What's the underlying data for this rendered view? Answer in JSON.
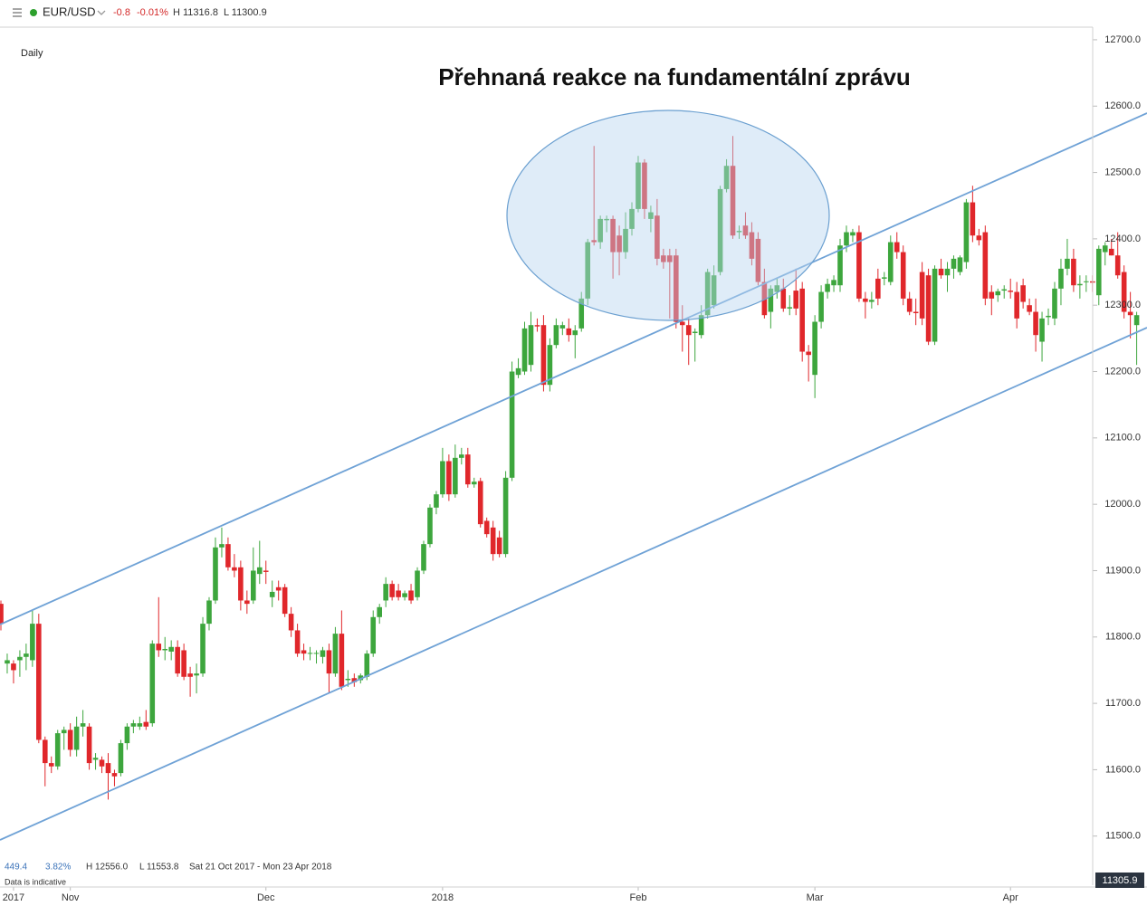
{
  "chart_data": {
    "type": "candlestick",
    "symbol": "EUR/USD",
    "change": "-0.8",
    "change_pct": "-0.01%",
    "header_high": "H 11316.8",
    "header_low": "L 11300.9",
    "interval": "Daily",
    "title": "Přehnaná reakce na fundamentální zprávu",
    "footer_range": "449.4",
    "footer_range_pct": "3.82%",
    "footer_high": "H 12556.0",
    "footer_low": "L 11553.8",
    "footer_period": "Sat 21 Oct 2017 - Mon 23 Apr 2018",
    "disclaimer": "Data is indicative",
    "last_price": "11305.9",
    "up_color": "#3da63d",
    "down_color": "#e0272b",
    "ylim": [
      11426,
      12719
    ],
    "yticks": [
      {
        "value": 11500,
        "label": "11500.0"
      },
      {
        "value": 11600,
        "label": "11600.0"
      },
      {
        "value": 11700,
        "label": "11700.0"
      },
      {
        "value": 11800,
        "label": "11800.0"
      },
      {
        "value": 11900,
        "label": "11900.0"
      },
      {
        "value": 12000,
        "label": "12000.0"
      },
      {
        "value": 12100,
        "label": "12100.0"
      },
      {
        "value": 12200,
        "label": "12200.0"
      },
      {
        "value": 12300,
        "label": "12300.0"
      },
      {
        "value": 12400,
        "label": "12400.0"
      },
      {
        "value": 12500,
        "label": "12500.0"
      },
      {
        "value": 12600,
        "label": "12600.0"
      },
      {
        "value": 12700,
        "label": "12700.0"
      }
    ],
    "xticks": [
      {
        "value": 2,
        "label": "2017"
      },
      {
        "value": 11,
        "label": "Nov"
      },
      {
        "value": 42,
        "label": "Dec"
      },
      {
        "value": 70,
        "label": "2018"
      },
      {
        "value": 101,
        "label": "Feb"
      },
      {
        "value": 129,
        "label": "Mar"
      },
      {
        "value": 160,
        "label": "Apr"
      }
    ],
    "candles": [
      [
        11850,
        11855,
        11810,
        11820
      ],
      [
        11760,
        11775,
        11745,
        11765
      ],
      [
        11760,
        11765,
        11730,
        11750
      ],
      [
        11765,
        11780,
        11740,
        11770
      ],
      [
        11770,
        11790,
        11750,
        11775
      ],
      [
        11765,
        11840,
        11755,
        11820
      ],
      [
        11820,
        11835,
        11640,
        11645
      ],
      [
        11645,
        11650,
        11575,
        11610
      ],
      [
        11610,
        11620,
        11595,
        11605
      ],
      [
        11605,
        11660,
        11600,
        11655
      ],
      [
        11655,
        11665,
        11630,
        11660
      ],
      [
        11660,
        11670,
        11620,
        11630
      ],
      [
        11630,
        11680,
        11620,
        11665
      ],
      [
        11665,
        11690,
        11650,
        11670
      ],
      [
        11665,
        11670,
        11600,
        11610
      ],
      [
        11615,
        11625,
        11600,
        11618
      ],
      [
        11615,
        11620,
        11595,
        11605
      ],
      [
        11610,
        11625,
        11555,
        11595
      ],
      [
        11595,
        11600,
        11575,
        11590
      ],
      [
        11595,
        11645,
        11590,
        11640
      ],
      [
        11640,
        11670,
        11630,
        11665
      ],
      [
        11665,
        11675,
        11655,
        11670
      ],
      [
        11665,
        11680,
        11660,
        11670
      ],
      [
        11672,
        11690,
        11660,
        11665
      ],
      [
        11670,
        11795,
        11665,
        11790
      ],
      [
        11790,
        11860,
        11770,
        11780
      ],
      [
        11780,
        11800,
        11765,
        11782
      ],
      [
        11778,
        11795,
        11765,
        11785
      ],
      [
        11785,
        11795,
        11740,
        11745
      ],
      [
        11780,
        11790,
        11735,
        11740
      ],
      [
        11745,
        11755,
        11710,
        11740
      ],
      [
        11742,
        11760,
        11715,
        11745
      ],
      [
        11745,
        11830,
        11740,
        11820
      ],
      [
        11820,
        11860,
        11810,
        11855
      ],
      [
        11855,
        11950,
        11850,
        11935
      ],
      [
        11935,
        11965,
        11920,
        11940
      ],
      [
        11940,
        11950,
        11900,
        11905
      ],
      [
        11905,
        11925,
        11890,
        11900
      ],
      [
        11905,
        11915,
        11840,
        11855
      ],
      [
        11855,
        11870,
        11835,
        11850
      ],
      [
        11855,
        11935,
        11850,
        11900
      ],
      [
        11895,
        11945,
        11880,
        11905
      ],
      [
        11900,
        11915,
        11880,
        11898
      ],
      [
        11860,
        11885,
        11845,
        11868
      ],
      [
        11875,
        11885,
        11855,
        11870
      ],
      [
        11875,
        11880,
        11830,
        11835
      ],
      [
        11835,
        11845,
        11800,
        11810
      ],
      [
        11810,
        11820,
        11770,
        11775
      ],
      [
        11780,
        11790,
        11765,
        11775
      ],
      [
        11775,
        11785,
        11765,
        11776
      ],
      [
        11775,
        11780,
        11760,
        11776
      ],
      [
        11770,
        11785,
        11760,
        11780
      ],
      [
        11780,
        11790,
        11715,
        11745
      ],
      [
        11745,
        11815,
        11740,
        11805
      ],
      [
        11805,
        11840,
        11720,
        11725
      ],
      [
        11735,
        11750,
        11725,
        11737
      ],
      [
        11738,
        11745,
        11725,
        11732
      ],
      [
        11735,
        11745,
        11730,
        11742
      ],
      [
        11740,
        11780,
        11735,
        11775
      ],
      [
        11775,
        11840,
        11770,
        11830
      ],
      [
        11830,
        11850,
        11820,
        11845
      ],
      [
        11855,
        11890,
        11845,
        11880
      ],
      [
        11880,
        11885,
        11855,
        11860
      ],
      [
        11870,
        11880,
        11855,
        11860
      ],
      [
        11860,
        11870,
        11855,
        11866
      ],
      [
        11870,
        11880,
        11850,
        11855
      ],
      [
        11860,
        11905,
        11855,
        11900
      ],
      [
        11900,
        11945,
        11895,
        11940
      ],
      [
        11940,
        12000,
        11935,
        11995
      ],
      [
        11995,
        12020,
        11985,
        12015
      ],
      [
        12015,
        12085,
        12010,
        12065
      ],
      [
        12065,
        12075,
        12005,
        12015
      ],
      [
        12015,
        12090,
        12010,
        12070
      ],
      [
        12070,
        12085,
        12060,
        12075
      ],
      [
        12075,
        12085,
        12025,
        12030
      ],
      [
        12030,
        12040,
        12025,
        12034
      ],
      [
        12035,
        12040,
        11965,
        11970
      ],
      [
        11975,
        11980,
        11950,
        11955
      ],
      [
        11965,
        11975,
        11915,
        11925
      ],
      [
        11950,
        11960,
        11920,
        11925
      ],
      [
        11925,
        12050,
        11920,
        12040
      ],
      [
        12040,
        12215,
        12035,
        12200
      ],
      [
        12195,
        12220,
        12190,
        12205
      ],
      [
        12200,
        12275,
        12195,
        12265
      ],
      [
        12210,
        12290,
        12200,
        12270
      ],
      [
        12270,
        12280,
        12260,
        12268
      ],
      [
        12270,
        12285,
        12170,
        12180
      ],
      [
        12180,
        12250,
        12170,
        12240
      ],
      [
        12240,
        12280,
        12235,
        12270
      ],
      [
        12265,
        12275,
        12255,
        12270
      ],
      [
        12265,
        12280,
        12245,
        12255
      ],
      [
        12255,
        12270,
        12220,
        12262
      ],
      [
        12265,
        12320,
        12260,
        12310
      ],
      [
        12310,
        12400,
        12300,
        12395
      ],
      [
        12398,
        12540,
        12390,
        12395
      ],
      [
        12395,
        12435,
        12385,
        12430
      ],
      [
        12428,
        12435,
        12410,
        12430
      ],
      [
        12430,
        12435,
        12340,
        12380
      ],
      [
        12405,
        12420,
        12345,
        12380
      ],
      [
        12380,
        12440,
        12370,
        12415
      ],
      [
        12415,
        12455,
        12405,
        12445
      ],
      [
        12445,
        12525,
        12440,
        12515
      ],
      [
        12515,
        12520,
        12430,
        12445
      ],
      [
        12430,
        12450,
        12410,
        12440
      ],
      [
        12435,
        12460,
        12360,
        12370
      ],
      [
        12375,
        12385,
        12355,
        12365
      ],
      [
        12375,
        12385,
        12280,
        12365
      ],
      [
        12375,
        12385,
        12265,
        12275
      ],
      [
        12275,
        12300,
        12230,
        12270
      ],
      [
        12270,
        12280,
        12210,
        12255
      ],
      [
        12258,
        12265,
        12215,
        12260
      ],
      [
        12255,
        12300,
        12250,
        12285
      ],
      [
        12285,
        12355,
        12280,
        12350
      ],
      [
        12300,
        12360,
        12295,
        12345
      ],
      [
        12350,
        12480,
        12345,
        12475
      ],
      [
        12475,
        12520,
        12470,
        12510
      ],
      [
        12510,
        12555,
        12400,
        12405
      ],
      [
        12410,
        12420,
        12400,
        12412
      ],
      [
        12420,
        12440,
        12400,
        12405
      ],
      [
        12410,
        12425,
        12360,
        12370
      ],
      [
        12400,
        12410,
        12330,
        12335
      ],
      [
        12335,
        12355,
        12280,
        12285
      ],
      [
        12290,
        12330,
        12265,
        12325
      ],
      [
        12320,
        12340,
        12310,
        12330
      ],
      [
        12325,
        12340,
        12290,
        12295
      ],
      [
        12295,
        12315,
        12285,
        12297
      ],
      [
        12322,
        12355,
        12285,
        12295
      ],
      [
        12325,
        12335,
        12215,
        12230
      ],
      [
        12230,
        12240,
        12185,
        12225
      ],
      [
        12195,
        12285,
        12160,
        12275
      ],
      [
        12275,
        12330,
        12265,
        12320
      ],
      [
        12320,
        12340,
        12310,
        12332
      ],
      [
        12330,
        12345,
        12320,
        12338
      ],
      [
        12330,
        12400,
        12320,
        12390
      ],
      [
        12390,
        12420,
        12380,
        12410
      ],
      [
        12405,
        12415,
        12395,
        12410
      ],
      [
        12410,
        12420,
        12305,
        12310
      ],
      [
        12310,
        12320,
        12280,
        12305
      ],
      [
        12305,
        12320,
        12295,
        12308
      ],
      [
        12340,
        12355,
        12300,
        12310
      ],
      [
        12340,
        12350,
        12330,
        12342
      ],
      [
        12335,
        12405,
        12330,
        12395
      ],
      [
        12395,
        12410,
        12370,
        12380
      ],
      [
        12380,
        12390,
        12300,
        12310
      ],
      [
        12310,
        12320,
        12285,
        12290
      ],
      [
        12290,
        12310,
        12270,
        12288
      ],
      [
        12350,
        12365,
        12270,
        12280
      ],
      [
        12345,
        12355,
        12240,
        12245
      ],
      [
        12245,
        12360,
        12240,
        12355
      ],
      [
        12355,
        12370,
        12340,
        12345
      ],
      [
        12345,
        12365,
        12320,
        12355
      ],
      [
        12355,
        12375,
        12340,
        12370
      ],
      [
        12350,
        12375,
        12345,
        12372
      ],
      [
        12365,
        12460,
        12355,
        12455
      ],
      [
        12455,
        12480,
        12395,
        12405
      ],
      [
        12405,
        12415,
        12390,
        12398
      ],
      [
        12410,
        12420,
        12300,
        12310
      ],
      [
        12320,
        12330,
        12285,
        12310
      ],
      [
        12315,
        12325,
        12305,
        12321
      ],
      [
        12322,
        12330,
        12310,
        12324
      ],
      [
        12322,
        12340,
        12310,
        12320
      ],
      [
        12320,
        12335,
        12265,
        12280
      ],
      [
        12330,
        12340,
        12295,
        12305
      ],
      [
        12300,
        12310,
        12285,
        12290
      ],
      [
        12290,
        12310,
        12230,
        12255
      ],
      [
        12245,
        12290,
        12215,
        12280
      ],
      [
        12282,
        12295,
        12270,
        12284
      ],
      [
        12280,
        12335,
        12270,
        12325
      ],
      [
        12325,
        12370,
        12300,
        12355
      ],
      [
        12355,
        12400,
        12345,
        12370
      ],
      [
        12370,
        12385,
        12320,
        12330
      ],
      [
        12330,
        12345,
        12310,
        12332
      ],
      [
        12335,
        12345,
        12320,
        12336
      ],
      [
        12336,
        12345,
        12320,
        12334
      ],
      [
        12315,
        12390,
        12300,
        12385
      ],
      [
        12380,
        12395,
        12360,
        12390
      ],
      [
        12385,
        12400,
        12375,
        12375
      ],
      [
        12375,
        12410,
        12340,
        12345
      ],
      [
        12350,
        12360,
        12280,
        12290
      ],
      [
        12290,
        12320,
        12250,
        12285
      ],
      [
        12270,
        12290,
        12210,
        12285
      ]
    ]
  }
}
